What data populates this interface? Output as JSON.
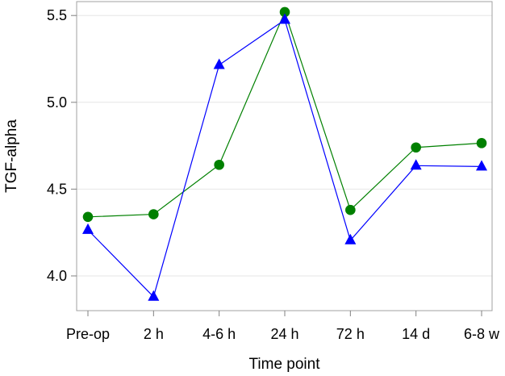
{
  "chart_data": {
    "type": "line",
    "xlabel": "Time point",
    "ylabel": "TGF-alpha",
    "categories": [
      "Pre-op",
      "2 h",
      "4-6 h",
      "24 h",
      "72 h",
      "14 d",
      "6-8 w"
    ],
    "ylim": [
      3.8,
      5.58
    ],
    "yticks": [
      4.0,
      4.5,
      5.0,
      5.5
    ],
    "grid": "horizontal",
    "series": [
      {
        "marker": "circle",
        "color": "#008000",
        "values": [
          4.34,
          4.355,
          4.64,
          5.52,
          4.38,
          4.74,
          4.765
        ]
      },
      {
        "marker": "triangle",
        "color": "#0000ff",
        "values": [
          4.265,
          3.88,
          5.215,
          5.475,
          4.205,
          4.635,
          4.63
        ]
      }
    ]
  }
}
